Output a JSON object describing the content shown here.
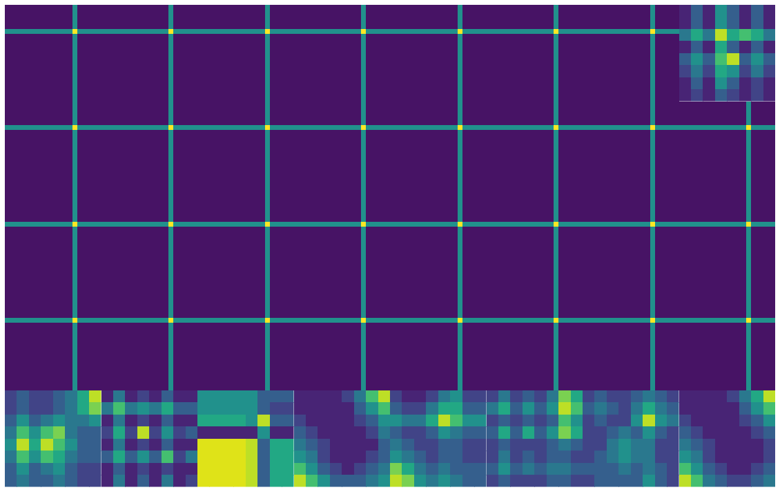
{
  "chart_data": [
    {
      "type": "heatmap",
      "zlim": [
        0,
        1
      ],
      "x_edges": [
        0,
        14,
        15,
        20,
        34,
        35,
        40,
        54,
        55,
        60,
        74,
        75,
        80,
        94,
        95,
        100,
        114,
        115,
        120,
        134,
        135,
        140,
        154,
        155,
        160
      ],
      "y_edges": [
        0,
        5,
        6,
        20,
        25,
        26,
        40,
        45,
        46,
        60,
        65,
        66,
        80
      ],
      "cells": [
        [
          0.05,
          0.5,
          0.05,
          0.05,
          0.5,
          0.05,
          0.05,
          0.5,
          0.05,
          0.05,
          0.5,
          0.05,
          0.05,
          0.5,
          0.05,
          0.05,
          0.5,
          0.05,
          0.05,
          0.5,
          0.05,
          null,
          null,
          null
        ],
        [
          0.5,
          1,
          0.5,
          0.5,
          1,
          0.5,
          0.5,
          1,
          0.5,
          0.5,
          1,
          0.5,
          0.5,
          1,
          0.5,
          0.5,
          1,
          0.5,
          0.5,
          1,
          0.5,
          null,
          null,
          null
        ],
        [
          0.05,
          0.5,
          0.05,
          0.05,
          0.5,
          0.05,
          0.05,
          0.5,
          0.05,
          0.05,
          0.5,
          0.05,
          0.05,
          0.5,
          0.05,
          0.05,
          0.5,
          0.05,
          0.05,
          0.5,
          0.05,
          null,
          null,
          null
        ],
        [
          0.05,
          0.5,
          0.05,
          0.05,
          0.5,
          0.05,
          0.05,
          0.5,
          0.05,
          0.05,
          0.5,
          0.05,
          0.05,
          0.5,
          0.05,
          0.05,
          0.5,
          0.05,
          0.05,
          0.5,
          0.05,
          0.05,
          0.5,
          0.05
        ],
        [
          0.5,
          1,
          0.5,
          0.5,
          1,
          0.5,
          0.5,
          1,
          0.5,
          0.5,
          1,
          0.5,
          0.5,
          1,
          0.5,
          0.5,
          1,
          0.5,
          0.5,
          1,
          0.5,
          0.5,
          1,
          0.5
        ],
        [
          0.05,
          0.5,
          0.05,
          0.05,
          0.5,
          0.05,
          0.05,
          0.5,
          0.05,
          0.05,
          0.5,
          0.05,
          0.05,
          0.5,
          0.05,
          0.05,
          0.5,
          0.05,
          0.05,
          0.5,
          0.05,
          0.05,
          0.5,
          0.05
        ],
        [
          0.05,
          0.5,
          0.05,
          0.05,
          0.5,
          0.05,
          0.05,
          0.5,
          0.05,
          0.05,
          0.5,
          0.05,
          0.05,
          0.5,
          0.05,
          0.05,
          0.5,
          0.05,
          0.05,
          0.5,
          0.05,
          0.05,
          0.5,
          0.05
        ],
        [
          0.5,
          1,
          0.5,
          0.5,
          1,
          0.5,
          0.5,
          1,
          0.5,
          0.5,
          1,
          0.5,
          0.5,
          1,
          0.5,
          0.5,
          1,
          0.5,
          0.5,
          1,
          0.5,
          0.5,
          1,
          0.5
        ],
        [
          0.05,
          0.5,
          0.05,
          0.05,
          0.5,
          0.05,
          0.05,
          0.5,
          0.05,
          0.05,
          0.5,
          0.05,
          0.05,
          0.5,
          0.05,
          0.05,
          0.5,
          0.05,
          0.05,
          0.5,
          0.05,
          0.05,
          0.5,
          0.05
        ],
        [
          0.05,
          0.5,
          0.05,
          0.05,
          0.5,
          0.05,
          0.05,
          0.5,
          0.05,
          0.05,
          0.5,
          0.05,
          0.05,
          0.5,
          0.05,
          0.05,
          0.5,
          0.05,
          0.05,
          0.5,
          0.05,
          0.05,
          0.5,
          0.05
        ],
        [
          0.5,
          1,
          0.5,
          0.5,
          1,
          0.5,
          0.5,
          1,
          0.5,
          0.5,
          1,
          0.5,
          0.5,
          1,
          0.5,
          0.5,
          1,
          0.5,
          0.5,
          1,
          0.5,
          0.5,
          1,
          0.5
        ],
        [
          0.05,
          0.5,
          0.05,
          0.05,
          0.5,
          0.05,
          0.05,
          0.5,
          0.05,
          0.05,
          0.5,
          0.05,
          0.05,
          0.5,
          0.05,
          0.05,
          0.5,
          0.05,
          0.05,
          0.5,
          0.05,
          0.05,
          0.5,
          0.05
        ]
      ]
    },
    {
      "type": "heatmap",
      "zlim": [
        0,
        1
      ],
      "cells": [
        [
          0.1,
          0.3,
          0.1,
          0.5,
          0.3,
          0.1,
          0.3,
          0.1
        ],
        [
          0.1,
          0.3,
          0.1,
          0.5,
          0.3,
          0.1,
          0.3,
          0.1
        ],
        [
          0.4,
          0.6,
          0.4,
          0.9,
          0.6,
          0.7,
          0.6,
          0.4
        ],
        [
          0.1,
          0.3,
          0.1,
          0.6,
          0.3,
          0.1,
          0.3,
          0.1
        ],
        [
          0.3,
          0.5,
          0.3,
          0.7,
          0.9,
          0.3,
          0.5,
          0.3
        ],
        [
          0.2,
          0.4,
          0.2,
          0.6,
          0.5,
          0.2,
          0.4,
          0.2
        ],
        [
          0.1,
          0.3,
          0.1,
          0.5,
          0.3,
          0.1,
          0.2,
          0.1
        ],
        [
          0.1,
          0.2,
          0.1,
          0.3,
          0.2,
          0.1,
          0.2,
          0.1
        ]
      ]
    },
    {
      "type": "heatmap",
      "zlim": [
        0,
        1
      ],
      "cells": [
        [
          0.2,
          0.3,
          0.2,
          0.2,
          0.3,
          0.4,
          0.6,
          0.9
        ],
        [
          0.2,
          0.3,
          0.2,
          0.2,
          0.3,
          0.4,
          0.6,
          0.8
        ],
        [
          0.3,
          0.5,
          0.3,
          0.4,
          0.5,
          0.4,
          0.4,
          0.5
        ],
        [
          0.4,
          0.7,
          0.5,
          0.7,
          0.8,
          0.4,
          0.3,
          0.3
        ],
        [
          0.5,
          0.9,
          0.6,
          0.9,
          0.7,
          0.5,
          0.3,
          0.3
        ],
        [
          0.4,
          0.7,
          0.5,
          0.7,
          0.6,
          0.4,
          0.3,
          0.3
        ],
        [
          0.3,
          0.5,
          0.3,
          0.4,
          0.5,
          0.3,
          0.2,
          0.2
        ],
        [
          0.3,
          0.4,
          0.3,
          0.3,
          0.4,
          0.3,
          0.2,
          0.2
        ]
      ]
    },
    {
      "type": "heatmap",
      "zlim": [
        0,
        1
      ],
      "cells": [
        [
          0.1,
          0.4,
          0.1,
          0.2,
          0.1,
          0.3,
          0.1,
          0.1
        ],
        [
          0.4,
          0.7,
          0.4,
          0.5,
          0.4,
          0.6,
          0.3,
          0.3
        ],
        [
          0.1,
          0.4,
          0.1,
          0.2,
          0.1,
          0.3,
          0.1,
          0.1
        ],
        [
          0.2,
          0.6,
          0.2,
          0.9,
          0.2,
          0.5,
          0.2,
          0.3
        ],
        [
          0.1,
          0.4,
          0.1,
          0.2,
          0.1,
          0.3,
          0.1,
          0.1
        ],
        [
          0.3,
          0.6,
          0.3,
          0.5,
          0.3,
          0.7,
          0.2,
          0.4
        ],
        [
          0.1,
          0.3,
          0.1,
          0.2,
          0.1,
          0.2,
          0.1,
          0.1
        ],
        [
          0.1,
          0.4,
          0.1,
          0.3,
          0.1,
          0.4,
          0.1,
          0.2
        ]
      ]
    },
    {
      "type": "heatmap",
      "zlim": [
        0,
        1
      ],
      "cells": [
        [
          0.5,
          0.5,
          0.5,
          0.5,
          0.5,
          0.3,
          0.3,
          0.3
        ],
        [
          0.5,
          0.5,
          0.5,
          0.5,
          0.5,
          0.3,
          0.2,
          0.2
        ],
        [
          0.6,
          0.6,
          0.6,
          0.6,
          0.5,
          0.9,
          0.3,
          0.3
        ],
        [
          0.1,
          0.1,
          0.1,
          0.1,
          0.1,
          0.5,
          0.1,
          0.1
        ],
        [
          0.95,
          0.95,
          0.95,
          0.95,
          0.9,
          0.3,
          0.6,
          0.6
        ],
        [
          0.95,
          0.95,
          0.95,
          0.95,
          0.9,
          0.3,
          0.6,
          0.6
        ],
        [
          0.95,
          0.95,
          0.95,
          0.95,
          0.9,
          0.3,
          0.6,
          0.6
        ],
        [
          0.95,
          0.95,
          0.95,
          0.95,
          0.9,
          0.3,
          0.6,
          0.6
        ]
      ]
    },
    {
      "type": "heatmap",
      "zlim": [
        0,
        1
      ],
      "cells": [
        [
          0.1,
          0.1,
          0.1,
          0.1,
          0.2,
          0.4,
          0.7,
          0.9
        ],
        [
          0.1,
          0.1,
          0.1,
          0.1,
          0.1,
          0.3,
          0.5,
          0.7
        ],
        [
          0.2,
          0.1,
          0.1,
          0.1,
          0.1,
          0.2,
          0.3,
          0.5
        ],
        [
          0.3,
          0.2,
          0.1,
          0.1,
          0.1,
          0.1,
          0.2,
          0.4
        ],
        [
          0.4,
          0.3,
          0.2,
          0.1,
          0.1,
          0.1,
          0.1,
          0.3
        ],
        [
          0.5,
          0.4,
          0.2,
          0.1,
          0.1,
          0.1,
          0.2,
          0.3
        ],
        [
          0.7,
          0.5,
          0.3,
          0.2,
          0.1,
          0.2,
          0.3,
          0.4
        ],
        [
          0.9,
          0.7,
          0.5,
          0.3,
          0.3,
          0.3,
          0.4,
          0.5
        ]
      ]
    },
    {
      "type": "heatmap",
      "zlim": [
        0,
        1
      ],
      "cells": [
        [
          0.2,
          0.1,
          0.1,
          0.2,
          0.4,
          0.5,
          0.2,
          0.2
        ],
        [
          0.3,
          0.2,
          0.2,
          0.4,
          0.6,
          0.6,
          0.3,
          0.3
        ],
        [
          0.5,
          0.4,
          0.4,
          0.6,
          0.9,
          0.7,
          0.5,
          0.5
        ],
        [
          0.3,
          0.2,
          0.2,
          0.3,
          0.5,
          0.4,
          0.3,
          0.3
        ],
        [
          0.4,
          0.3,
          0.2,
          0.2,
          0.3,
          0.3,
          0.2,
          0.2
        ],
        [
          0.5,
          0.4,
          0.3,
          0.2,
          0.3,
          0.3,
          0.2,
          0.2
        ],
        [
          0.8,
          0.6,
          0.4,
          0.3,
          0.4,
          0.3,
          0.3,
          0.3
        ],
        [
          0.9,
          0.8,
          0.5,
          0.4,
          0.5,
          0.4,
          0.3,
          0.3
        ]
      ]
    },
    {
      "type": "heatmap",
      "zlim": [
        0,
        1
      ],
      "cells": [
        [
          0.2,
          0.4,
          0.2,
          0.3,
          0.2,
          0.4,
          0.8,
          0.6
        ],
        [
          0.4,
          0.6,
          0.3,
          0.5,
          0.3,
          0.5,
          0.9,
          0.7
        ],
        [
          0.2,
          0.3,
          0.2,
          0.3,
          0.2,
          0.3,
          0.7,
          0.5
        ],
        [
          0.3,
          0.6,
          0.3,
          0.6,
          0.3,
          0.5,
          0.8,
          0.6
        ],
        [
          0.2,
          0.3,
          0.2,
          0.2,
          0.2,
          0.3,
          0.4,
          0.3
        ],
        [
          0.2,
          0.4,
          0.2,
          0.3,
          0.2,
          0.3,
          0.3,
          0.2
        ],
        [
          0.3,
          0.5,
          0.3,
          0.4,
          0.3,
          0.4,
          0.4,
          0.3
        ],
        [
          0.2,
          0.3,
          0.2,
          0.2,
          0.2,
          0.3,
          0.3,
          0.2
        ]
      ]
    },
    {
      "type": "heatmap",
      "zlim": [
        0,
        1
      ],
      "cells": [
        [
          0.2,
          0.3,
          0.2,
          0.2,
          0.3,
          0.4,
          0.3,
          0.2
        ],
        [
          0.3,
          0.4,
          0.3,
          0.2,
          0.4,
          0.6,
          0.4,
          0.3
        ],
        [
          0.2,
          0.3,
          0.2,
          0.2,
          0.5,
          0.9,
          0.5,
          0.4
        ],
        [
          0.2,
          0.2,
          0.3,
          0.4,
          0.3,
          0.5,
          0.3,
          0.2
        ],
        [
          0.2,
          0.2,
          0.4,
          0.5,
          0.4,
          0.4,
          0.2,
          0.2
        ],
        [
          0.2,
          0.3,
          0.4,
          0.5,
          0.4,
          0.4,
          0.2,
          0.2
        ],
        [
          0.3,
          0.3,
          0.3,
          0.4,
          0.3,
          0.4,
          0.3,
          0.2
        ],
        [
          0.2,
          0.3,
          0.3,
          0.3,
          0.3,
          0.5,
          0.3,
          0.2
        ]
      ]
    },
    {
      "type": "heatmap",
      "zlim": [
        0,
        1
      ],
      "cells": [
        [
          0.1,
          0.1,
          0.1,
          0.1,
          0.2,
          0.4,
          0.6,
          0.9
        ],
        [
          0.1,
          0.1,
          0.1,
          0.1,
          0.1,
          0.3,
          0.5,
          0.7
        ],
        [
          0.2,
          0.1,
          0.1,
          0.1,
          0.1,
          0.2,
          0.3,
          0.5
        ],
        [
          0.3,
          0.2,
          0.1,
          0.1,
          0.1,
          0.1,
          0.2,
          0.3
        ],
        [
          0.4,
          0.3,
          0.2,
          0.1,
          0.1,
          0.1,
          0.1,
          0.2
        ],
        [
          0.5,
          0.4,
          0.2,
          0.1,
          0.1,
          0.1,
          0.1,
          0.2
        ],
        [
          0.7,
          0.5,
          0.3,
          0.2,
          0.1,
          0.1,
          0.2,
          0.3
        ],
        [
          0.9,
          0.7,
          0.4,
          0.3,
          0.2,
          0.2,
          0.3,
          0.4
        ]
      ]
    }
  ]
}
